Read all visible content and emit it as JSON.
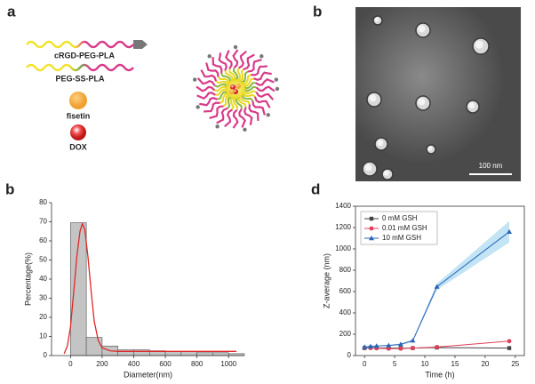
{
  "panel_labels": [
    "a",
    "b",
    "b",
    "d"
  ],
  "diagram": {
    "items": [
      "cRGD-PEG-PLA",
      "PEG-SS-PLA",
      "fisetin",
      "DOX"
    ]
  },
  "tem": {
    "scale_bar": "100 nm"
  },
  "chart_data": [
    {
      "type": "histogram",
      "xlabel": "Diameter(nm)",
      "ylabel": "Percentage(%)",
      "bins": [
        0,
        100,
        200,
        300,
        400,
        500,
        600,
        700,
        800,
        900,
        1000,
        1100
      ],
      "values": [
        69.5,
        9.5,
        5,
        3,
        3,
        2.5,
        2,
        2,
        1.5,
        1.5,
        1
      ],
      "color": "#c4c4c4",
      "fit": {
        "x": [
          -40,
          -20,
          0,
          20,
          40,
          60,
          75,
          90,
          110,
          130,
          150,
          175,
          200,
          250,
          300,
          400,
          600,
          800,
          1050
        ],
        "values": [
          1,
          5,
          15,
          33,
          52,
          65,
          69,
          66,
          52,
          34,
          18,
          8,
          4,
          2.5,
          2.2,
          2.2,
          2.2,
          2.2,
          2.2
        ],
        "color": "#e02828"
      },
      "xlim": [
        -120,
        1100
      ],
      "ylim": [
        0,
        80
      ],
      "xticks": [
        0,
        200,
        400,
        600,
        800,
        1000
      ],
      "yticks": [
        0,
        10,
        20,
        30,
        40,
        50,
        60,
        70,
        80
      ]
    },
    {
      "type": "line",
      "xlabel": "Time (h)",
      "ylabel": "Z-average (nm)",
      "x": [
        0,
        1,
        2,
        4,
        6,
        8,
        12,
        24
      ],
      "series": [
        {
          "name": "0 mM GSH",
          "color": "#444444",
          "marker": "square",
          "values": [
            70,
            75,
            72,
            70,
            68,
            70,
            75,
            70
          ]
        },
        {
          "name": "0.01 mM GSH",
          "color": "#e0405a",
          "marker": "circle",
          "values": [
            75,
            70,
            68,
            65,
            65,
            70,
            80,
            135
          ]
        },
        {
          "name": "10 mM GSH",
          "color": "#2a64b8",
          "marker": "triangle",
          "values": [
            80,
            85,
            90,
            95,
            105,
            140,
            645,
            1160
          ],
          "error": [
            5,
            5,
            5,
            5,
            8,
            10,
            30,
            100
          ],
          "band_color": "#a8d8f0"
        }
      ],
      "legend": "upper left",
      "xlim": [
        -1.5,
        26.5
      ],
      "ylim": [
        0,
        1400
      ],
      "xticks": [
        0,
        5,
        10,
        15,
        20,
        25
      ],
      "yticks": [
        0,
        200,
        400,
        600,
        800,
        1000,
        1200,
        1400
      ]
    }
  ]
}
